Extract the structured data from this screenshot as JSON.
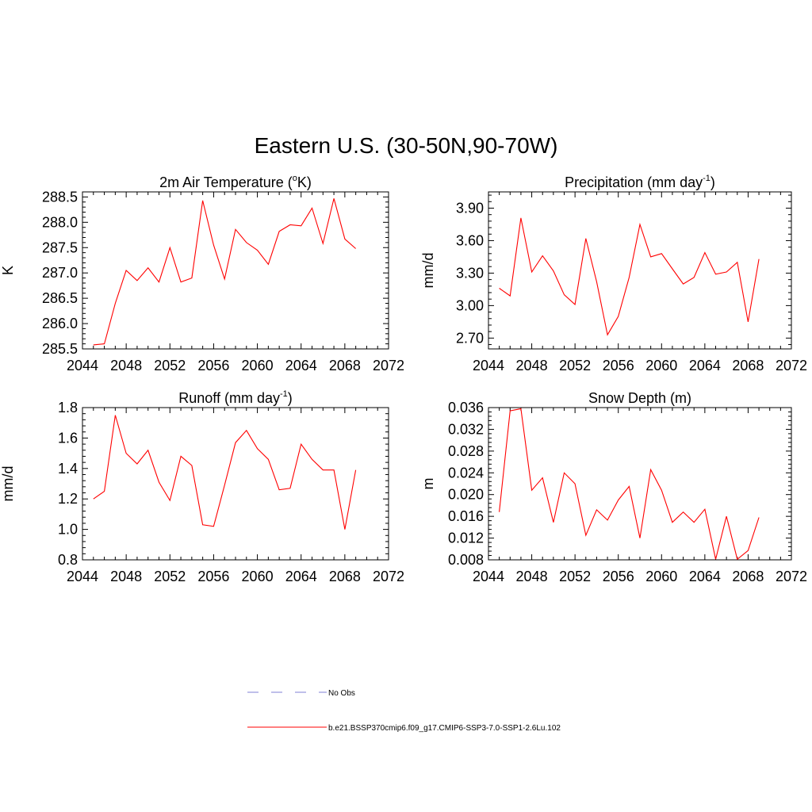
{
  "page_title": "Eastern U.S. (30-50N,90-70W)",
  "colors": {
    "model_line": "#ff0000",
    "obs_line": "#9999dd",
    "axis": "#000000"
  },
  "legend": {
    "obs_label": "No Obs",
    "model_label": "b.e21.BSSP370cmip6.f09_g17.CMIP6-SSP3-7.0-SSP1-2.6Lu.102"
  },
  "chart_data": [
    {
      "type": "line",
      "title": "2m Air Temperature (",
      "title_sup": "o",
      "title_end": "K)",
      "ylabel": "K",
      "xlim": [
        2044,
        2072
      ],
      "ylim": [
        285.5,
        288.6
      ],
      "xticks": [
        2044,
        2048,
        2052,
        2056,
        2060,
        2064,
        2068,
        2072
      ],
      "yticks": [
        285.5,
        286.0,
        286.5,
        287.0,
        287.5,
        288.0,
        288.5
      ],
      "ytick_decimals": 1,
      "x": [
        2045,
        2046,
        2047,
        2048,
        2049,
        2050,
        2051,
        2052,
        2053,
        2054,
        2055,
        2056,
        2057,
        2058,
        2059,
        2060,
        2061,
        2062,
        2063,
        2064,
        2065,
        2066,
        2067,
        2068,
        2069
      ],
      "series": [
        {
          "values": [
            285.58,
            285.6,
            286.4,
            287.05,
            286.85,
            287.1,
            286.82,
            287.5,
            286.82,
            286.9,
            288.43,
            287.55,
            286.88,
            287.86,
            287.6,
            287.45,
            287.17,
            287.82,
            287.95,
            287.93,
            288.28,
            287.58,
            288.47,
            287.67,
            287.48
          ]
        }
      ]
    },
    {
      "type": "line",
      "title": "Precipitation (mm day",
      "title_sup": "-1",
      "title_end": ")",
      "ylabel": "mm/d",
      "xlim": [
        2044,
        2072
      ],
      "ylim": [
        2.6,
        4.05
      ],
      "xticks": [
        2044,
        2048,
        2052,
        2056,
        2060,
        2064,
        2068,
        2072
      ],
      "yticks": [
        2.7,
        3.0,
        3.3,
        3.6,
        3.9
      ],
      "ytick_decimals": 2,
      "x": [
        2045,
        2046,
        2047,
        2048,
        2049,
        2050,
        2051,
        2052,
        2053,
        2054,
        2055,
        2056,
        2057,
        2058,
        2059,
        2060,
        2061,
        2062,
        2063,
        2064,
        2065,
        2066,
        2067,
        2068,
        2069
      ],
      "series": [
        {
          "values": [
            3.16,
            3.09,
            3.81,
            3.31,
            3.46,
            3.32,
            3.1,
            3.01,
            3.62,
            3.22,
            2.73,
            2.9,
            3.26,
            3.75,
            3.45,
            3.48,
            3.34,
            3.2,
            3.26,
            3.49,
            3.29,
            3.31,
            3.4,
            2.85,
            3.43
          ]
        }
      ]
    },
    {
      "type": "line",
      "title": "Runoff (mm day",
      "title_sup": "-1",
      "title_end": ")",
      "ylabel": "mm/d",
      "xlim": [
        2044,
        2072
      ],
      "ylim": [
        0.8,
        1.8
      ],
      "xticks": [
        2044,
        2048,
        2052,
        2056,
        2060,
        2064,
        2068,
        2072
      ],
      "yticks": [
        0.8,
        1.0,
        1.2,
        1.4,
        1.6,
        1.8
      ],
      "ytick_decimals": 1,
      "x": [
        2045,
        2046,
        2047,
        2048,
        2049,
        2050,
        2051,
        2052,
        2053,
        2054,
        2055,
        2056,
        2057,
        2058,
        2059,
        2060,
        2061,
        2062,
        2063,
        2064,
        2065,
        2066,
        2067,
        2068,
        2069
      ],
      "series": [
        {
          "values": [
            1.2,
            1.25,
            1.75,
            1.5,
            1.43,
            1.52,
            1.31,
            1.19,
            1.48,
            1.42,
            1.03,
            1.02,
            1.29,
            1.57,
            1.65,
            1.53,
            1.46,
            1.26,
            1.27,
            1.56,
            1.46,
            1.39,
            1.39,
            1.0,
            1.39
          ]
        }
      ]
    },
    {
      "type": "line",
      "title": "Snow Depth (m)",
      "title_sup": "",
      "title_end": "",
      "ylabel": "m",
      "xlim": [
        2044,
        2072
      ],
      "ylim": [
        0.008,
        0.036
      ],
      "xticks": [
        2044,
        2048,
        2052,
        2056,
        2060,
        2064,
        2068,
        2072
      ],
      "yticks": [
        0.008,
        0.012,
        0.016,
        0.02,
        0.024,
        0.028,
        0.032,
        0.036
      ],
      "ytick_decimals": 3,
      "x": [
        2045,
        2046,
        2047,
        2048,
        2049,
        2050,
        2051,
        2052,
        2053,
        2054,
        2055,
        2056,
        2057,
        2058,
        2059,
        2060,
        2061,
        2062,
        2063,
        2064,
        2065,
        2066,
        2067,
        2068,
        2069
      ],
      "series": [
        {
          "values": [
            0.0168,
            0.0354,
            0.0358,
            0.0208,
            0.0231,
            0.0149,
            0.024,
            0.022,
            0.0125,
            0.0172,
            0.0153,
            0.019,
            0.0215,
            0.012,
            0.0246,
            0.0208,
            0.0149,
            0.0168,
            0.0149,
            0.0173,
            0.0081,
            0.016,
            0.0081,
            0.0097,
            0.0158
          ]
        }
      ]
    }
  ]
}
